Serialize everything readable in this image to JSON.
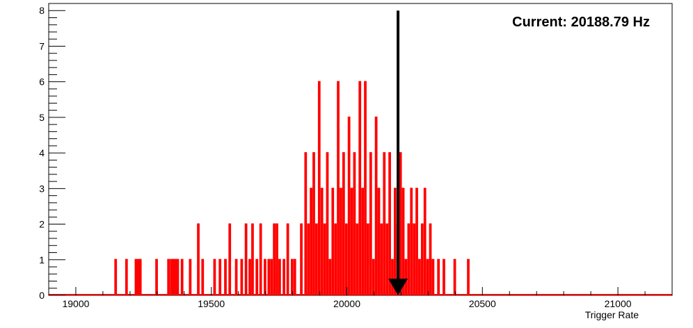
{
  "chart_data": {
    "type": "histogram",
    "xlabel": "Trigger Rate",
    "ylabel": "",
    "title": "",
    "xlim": [
      18900,
      21200
    ],
    "ylim": [
      0,
      8.2
    ],
    "x_ticks": [
      19000,
      19500,
      20000,
      20500,
      21000
    ],
    "y_ticks": [
      0,
      1,
      2,
      3,
      4,
      5,
      6,
      7,
      8
    ],
    "grid": false,
    "series": [
      {
        "color": "#ff0000",
        "bins": [
          {
            "x": 19145,
            "count": 1
          },
          {
            "x": 19185,
            "count": 1
          },
          {
            "x": 19220,
            "count": 1
          },
          {
            "x": 19228,
            "count": 1
          },
          {
            "x": 19236,
            "count": 1
          },
          {
            "x": 19296,
            "count": 1
          },
          {
            "x": 19340,
            "count": 1
          },
          {
            "x": 19350,
            "count": 1
          },
          {
            "x": 19358,
            "count": 1
          },
          {
            "x": 19366,
            "count": 1
          },
          {
            "x": 19374,
            "count": 1
          },
          {
            "x": 19390,
            "count": 1
          },
          {
            "x": 19420,
            "count": 1
          },
          {
            "x": 19450,
            "count": 2
          },
          {
            "x": 19466,
            "count": 1
          },
          {
            "x": 19510,
            "count": 1
          },
          {
            "x": 19530,
            "count": 1
          },
          {
            "x": 19550,
            "count": 1
          },
          {
            "x": 19566,
            "count": 2
          },
          {
            "x": 19590,
            "count": 1
          },
          {
            "x": 19610,
            "count": 1
          },
          {
            "x": 19626,
            "count": 2
          },
          {
            "x": 19640,
            "count": 1
          },
          {
            "x": 19650,
            "count": 2
          },
          {
            "x": 19666,
            "count": 1
          },
          {
            "x": 19680,
            "count": 2
          },
          {
            "x": 19696,
            "count": 1
          },
          {
            "x": 19710,
            "count": 1
          },
          {
            "x": 19720,
            "count": 1
          },
          {
            "x": 19730,
            "count": 2
          },
          {
            "x": 19740,
            "count": 2
          },
          {
            "x": 19750,
            "count": 1
          },
          {
            "x": 19766,
            "count": 1
          },
          {
            "x": 19780,
            "count": 2
          },
          {
            "x": 19796,
            "count": 1
          },
          {
            "x": 19806,
            "count": 1
          },
          {
            "x": 19830,
            "count": 2
          },
          {
            "x": 19846,
            "count": 4
          },
          {
            "x": 19856,
            "count": 2
          },
          {
            "x": 19866,
            "count": 3
          },
          {
            "x": 19876,
            "count": 4
          },
          {
            "x": 19886,
            "count": 2
          },
          {
            "x": 19896,
            "count": 6
          },
          {
            "x": 19906,
            "count": 3
          },
          {
            "x": 19916,
            "count": 2
          },
          {
            "x": 19926,
            "count": 4
          },
          {
            "x": 19936,
            "count": 1
          },
          {
            "x": 19946,
            "count": 3
          },
          {
            "x": 19956,
            "count": 2
          },
          {
            "x": 19966,
            "count": 6
          },
          {
            "x": 19976,
            "count": 3
          },
          {
            "x": 19986,
            "count": 4
          },
          {
            "x": 19996,
            "count": 2
          },
          {
            "x": 20006,
            "count": 5
          },
          {
            "x": 20016,
            "count": 3
          },
          {
            "x": 20026,
            "count": 4
          },
          {
            "x": 20036,
            "count": 2
          },
          {
            "x": 20046,
            "count": 6
          },
          {
            "x": 20056,
            "count": 3
          },
          {
            "x": 20066,
            "count": 6
          },
          {
            "x": 20076,
            "count": 2
          },
          {
            "x": 20086,
            "count": 4
          },
          {
            "x": 20096,
            "count": 1
          },
          {
            "x": 20106,
            "count": 5
          },
          {
            "x": 20116,
            "count": 3
          },
          {
            "x": 20126,
            "count": 2
          },
          {
            "x": 20136,
            "count": 4
          },
          {
            "x": 20146,
            "count": 2
          },
          {
            "x": 20156,
            "count": 4
          },
          {
            "x": 20166,
            "count": 1
          },
          {
            "x": 20176,
            "count": 3
          },
          {
            "x": 20186,
            "count": 2
          },
          {
            "x": 20196,
            "count": 4
          },
          {
            "x": 20206,
            "count": 3
          },
          {
            "x": 20216,
            "count": 1
          },
          {
            "x": 20226,
            "count": 2
          },
          {
            "x": 20236,
            "count": 3
          },
          {
            "x": 20246,
            "count": 2
          },
          {
            "x": 20256,
            "count": 3
          },
          {
            "x": 20266,
            "count": 1
          },
          {
            "x": 20276,
            "count": 2
          },
          {
            "x": 20286,
            "count": 3
          },
          {
            "x": 20296,
            "count": 1
          },
          {
            "x": 20306,
            "count": 2
          },
          {
            "x": 20316,
            "count": 1
          },
          {
            "x": 20336,
            "count": 1
          },
          {
            "x": 20356,
            "count": 1
          },
          {
            "x": 20396,
            "count": 1
          },
          {
            "x": 20446,
            "count": 1
          }
        ],
        "bin_width": 4
      }
    ],
    "annotations": [
      {
        "text": "Current: 20188.79 Hz",
        "position": "top-right"
      }
    ],
    "marker": {
      "x": 20188.79,
      "y_top": 8,
      "type": "down-arrow",
      "color": "#000000"
    }
  }
}
